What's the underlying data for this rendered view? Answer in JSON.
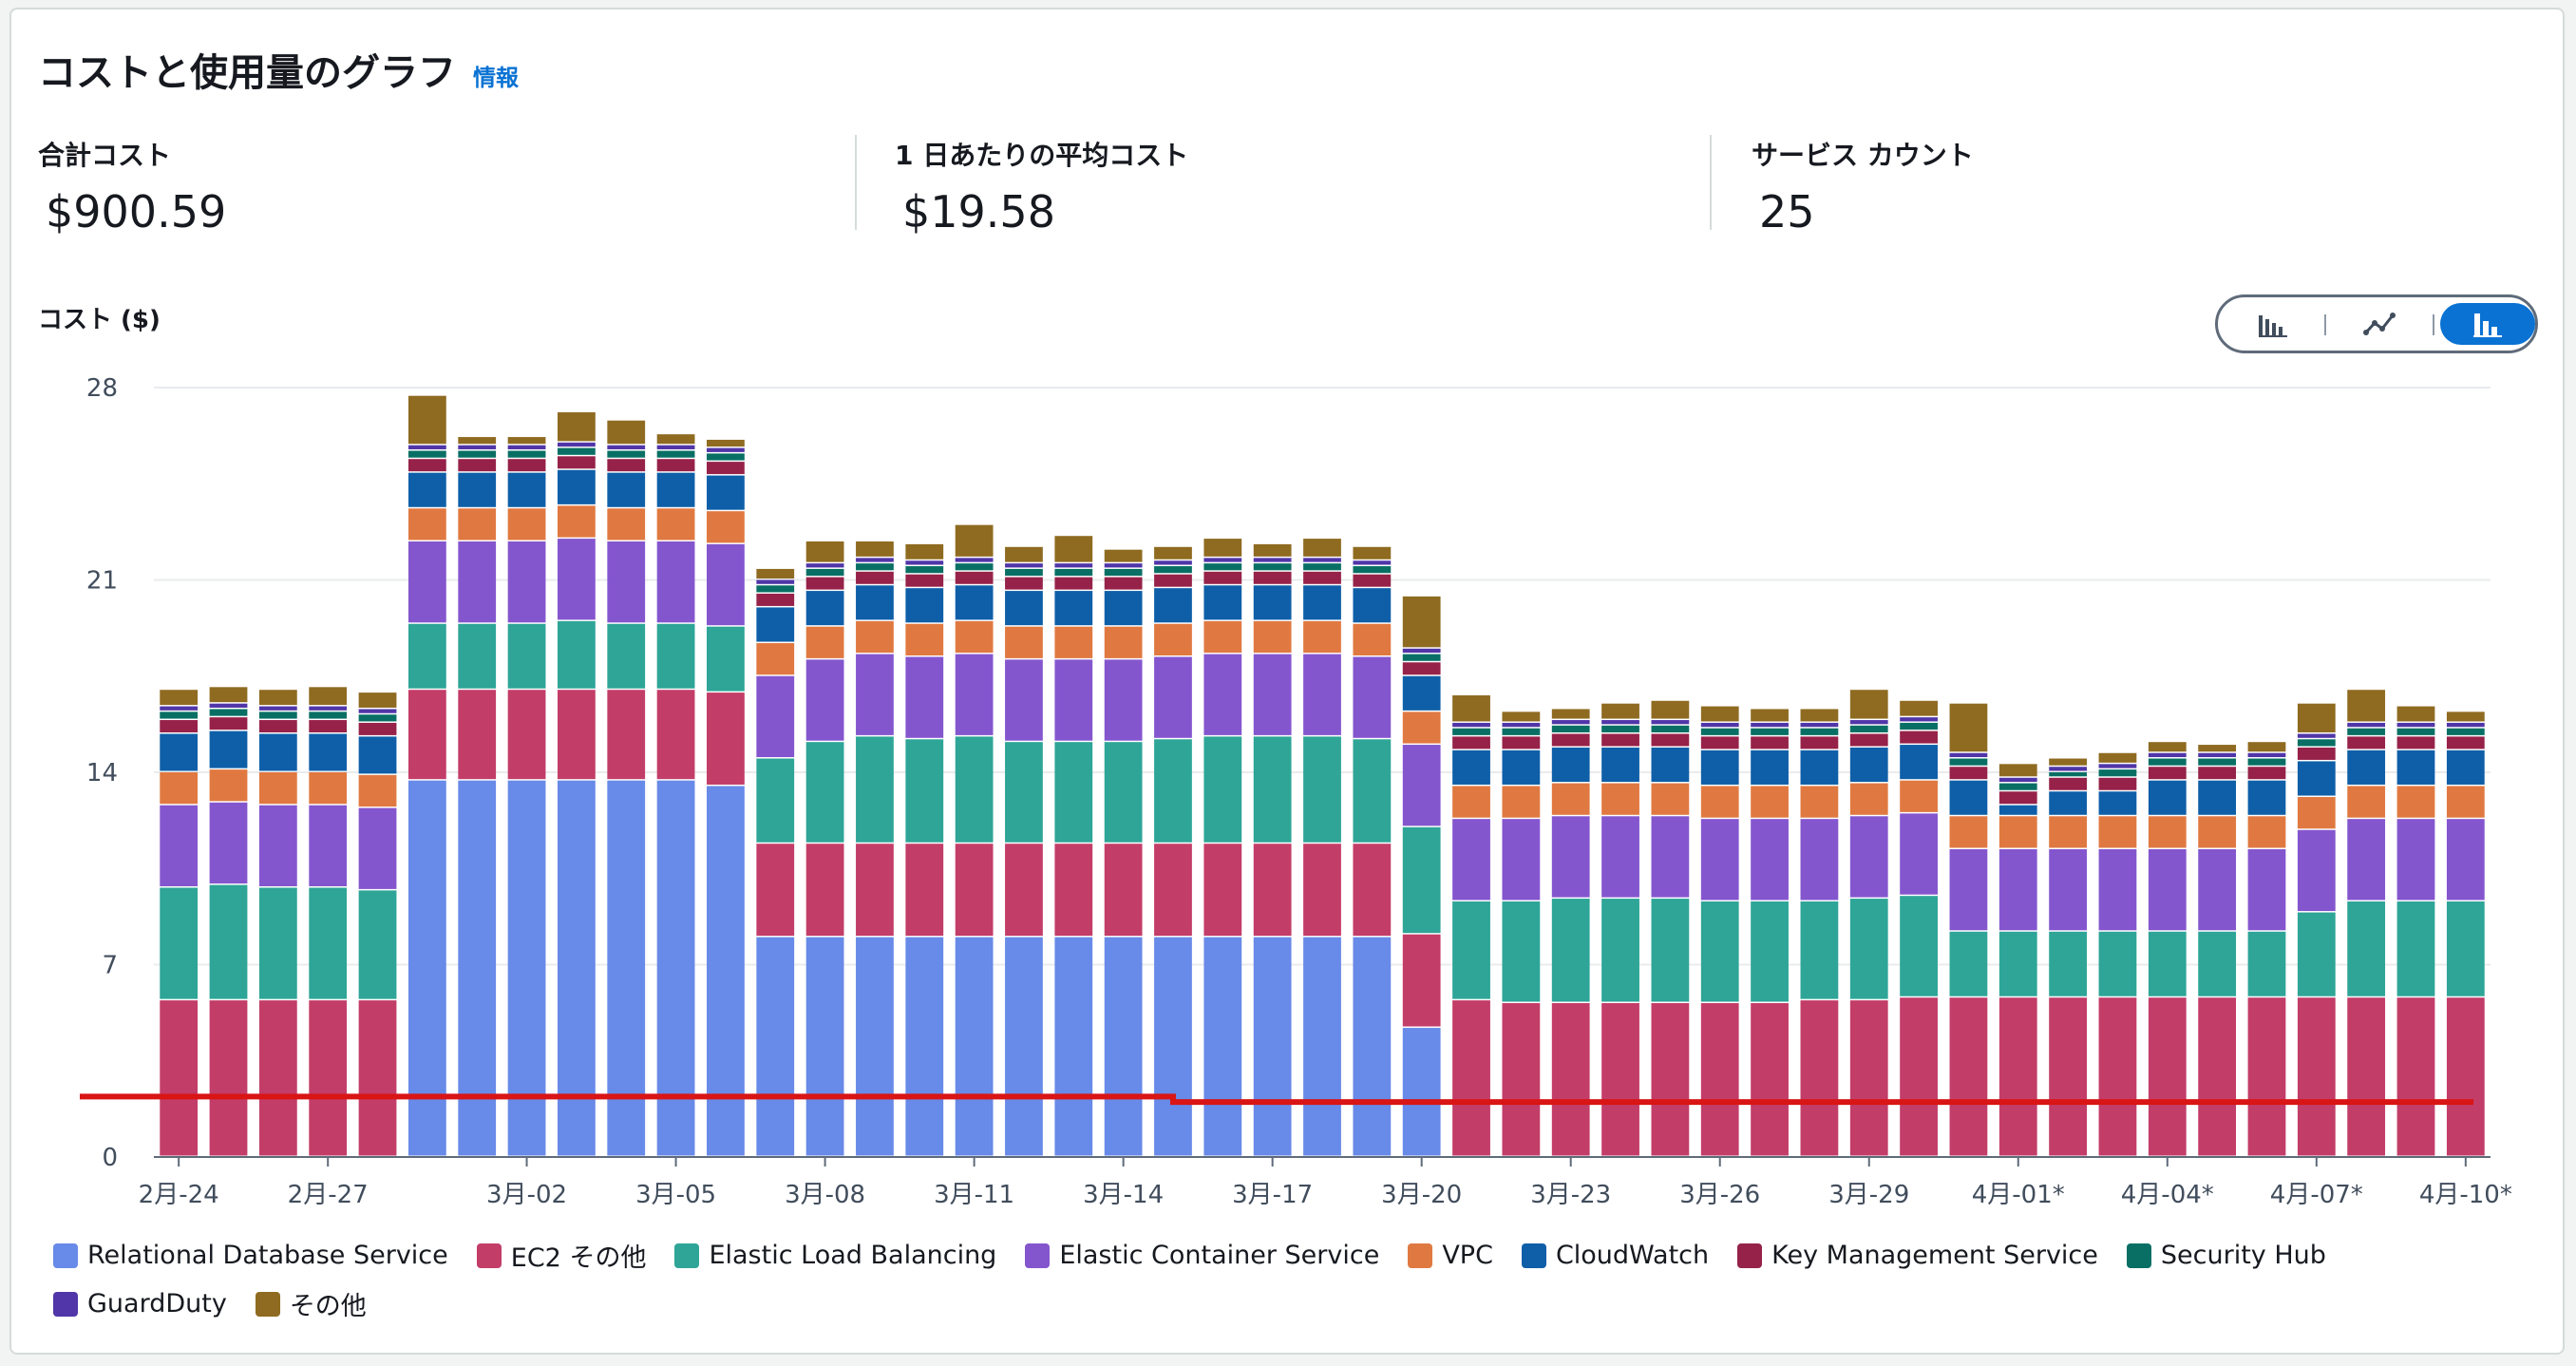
{
  "header": {
    "title": "コストと使用量のグラフ",
    "info_link": "情報"
  },
  "metrics": [
    {
      "label": "合計コスト",
      "value": "$900.59"
    },
    {
      "label": "1 日あたりの平均コスト",
      "value": "$19.58"
    },
    {
      "label": "サービス カウント",
      "value": "25"
    }
  ],
  "chart_toggle": {
    "options": [
      "bar-chart-icon",
      "line-chart-icon",
      "stacked-bar-chart-icon"
    ],
    "selected": "stacked-bar-chart-icon"
  },
  "chart_data": {
    "type": "bar",
    "stacked": true,
    "ylabel": "コスト ($)",
    "ylim": [
      0,
      28
    ],
    "yticks": [
      0,
      7,
      14,
      21,
      28
    ],
    "grid": true,
    "legend_position": "bottom",
    "categories": [
      "2月-24",
      "2月-25",
      "2月-26",
      "2月-27",
      "2月-28",
      "2月-29",
      "3月-01",
      "3月-02",
      "3月-03",
      "3月-04",
      "3月-05",
      "3月-06",
      "3月-07",
      "3月-08",
      "3月-09",
      "3月-10",
      "3月-11",
      "3月-12",
      "3月-13",
      "3月-14",
      "3月-15",
      "3月-16",
      "3月-17",
      "3月-18",
      "3月-19",
      "3月-20",
      "3月-21",
      "3月-22",
      "3月-23",
      "3月-24",
      "3月-25",
      "3月-26",
      "3月-27",
      "3月-28",
      "3月-29",
      "3月-30",
      "3月-31",
      "4月-01*",
      "4月-02*",
      "4月-03*",
      "4月-04*",
      "4月-05*",
      "4月-06*",
      "4月-07*",
      "4月-08*",
      "4月-09*",
      "4月-10*"
    ],
    "xtick_labels": [
      "2月-24",
      "2月-27",
      "3月-02",
      "3月-05",
      "3月-08",
      "3月-11",
      "3月-14",
      "3月-17",
      "3月-20",
      "3月-23",
      "3月-26",
      "3月-29",
      "4月-01*",
      "4月-04*",
      "4月-07*",
      "4月-10*"
    ],
    "series": [
      {
        "name": "Relational Database Service",
        "color": "#688ae8",
        "values": [
          0,
          0,
          0,
          0,
          0,
          13.7,
          13.7,
          13.7,
          13.7,
          13.7,
          13.7,
          13.5,
          8.0,
          8.0,
          8.0,
          8.0,
          8.0,
          8.0,
          8.0,
          8.0,
          8.0,
          8.0,
          8.0,
          8.0,
          8.0,
          4.7,
          0,
          0,
          0,
          0,
          0,
          0,
          0,
          0,
          0,
          0,
          0,
          0,
          0,
          0,
          0,
          0,
          0,
          0,
          0,
          0,
          0
        ]
      },
      {
        "name": "EC2 その他",
        "color": "#c33d69",
        "values": [
          5.7,
          5.7,
          5.7,
          5.7,
          5.7,
          3.3,
          3.3,
          3.3,
          3.3,
          3.3,
          3.3,
          3.4,
          3.4,
          3.4,
          3.4,
          3.4,
          3.4,
          3.4,
          3.4,
          3.4,
          3.4,
          3.4,
          3.4,
          3.4,
          3.4,
          3.4,
          5.7,
          5.6,
          5.6,
          5.6,
          5.6,
          5.6,
          5.6,
          5.7,
          5.7,
          5.8,
          5.8,
          5.8,
          5.8,
          5.8,
          5.8,
          5.8,
          5.8,
          5.8,
          5.8,
          5.8,
          5.8
        ]
      },
      {
        "name": "Elastic Load Balancing",
        "color": "#2ea597",
        "values": [
          4.1,
          4.2,
          4.1,
          4.1,
          4.0,
          2.4,
          2.4,
          2.4,
          2.5,
          2.4,
          2.4,
          2.4,
          3.1,
          3.7,
          3.9,
          3.8,
          3.9,
          3.7,
          3.7,
          3.7,
          3.8,
          3.9,
          3.9,
          3.9,
          3.8,
          3.9,
          3.6,
          3.7,
          3.8,
          3.8,
          3.8,
          3.7,
          3.7,
          3.6,
          3.7,
          3.7,
          2.4,
          2.4,
          2.4,
          2.4,
          2.4,
          2.4,
          2.4,
          3.1,
          3.5,
          3.5,
          3.5
        ]
      },
      {
        "name": "Elastic Container Service",
        "color": "#8456ce",
        "values": [
          3.0,
          3.0,
          3.0,
          3.0,
          3.0,
          3.0,
          3.0,
          3.0,
          3.0,
          3.0,
          3.0,
          3.0,
          3.0,
          3.0,
          3.0,
          3.0,
          3.0,
          3.0,
          3.0,
          3.0,
          3.0,
          3.0,
          3.0,
          3.0,
          3.0,
          3.0,
          3.0,
          3.0,
          3.0,
          3.0,
          3.0,
          3.0,
          3.0,
          3.0,
          3.0,
          3.0,
          3.0,
          3.0,
          3.0,
          3.0,
          3.0,
          3.0,
          3.0,
          3.0,
          3.0,
          3.0,
          3.0
        ]
      },
      {
        "name": "VPC",
        "color": "#e07941",
        "values": [
          1.2,
          1.2,
          1.2,
          1.2,
          1.2,
          1.2,
          1.2,
          1.2,
          1.2,
          1.2,
          1.2,
          1.2,
          1.2,
          1.2,
          1.2,
          1.2,
          1.2,
          1.2,
          1.2,
          1.2,
          1.2,
          1.2,
          1.2,
          1.2,
          1.2,
          1.2,
          1.2,
          1.2,
          1.2,
          1.2,
          1.2,
          1.2,
          1.2,
          1.2,
          1.2,
          1.2,
          1.2,
          1.2,
          1.2,
          1.2,
          1.2,
          1.2,
          1.2,
          1.2,
          1.2,
          1.2,
          1.2
        ]
      },
      {
        "name": "CloudWatch",
        "color": "#0f5fa8",
        "values": [
          1.4,
          1.4,
          1.4,
          1.4,
          1.4,
          1.3,
          1.3,
          1.3,
          1.3,
          1.3,
          1.3,
          1.3,
          1.3,
          1.3,
          1.3,
          1.3,
          1.3,
          1.3,
          1.3,
          1.3,
          1.3,
          1.3,
          1.3,
          1.3,
          1.3,
          1.3,
          1.3,
          1.3,
          1.3,
          1.3,
          1.3,
          1.3,
          1.3,
          1.3,
          1.3,
          1.3,
          1.3,
          0.4,
          0.9,
          0.9,
          1.3,
          1.3,
          1.3,
          1.3,
          1.3,
          1.3,
          1.3
        ]
      },
      {
        "name": "Key Management Service",
        "color": "#962249",
        "values": [
          0.5,
          0.5,
          0.5,
          0.5,
          0.5,
          0.5,
          0.5,
          0.5,
          0.5,
          0.5,
          0.5,
          0.5,
          0.5,
          0.5,
          0.5,
          0.5,
          0.5,
          0.5,
          0.5,
          0.5,
          0.5,
          0.5,
          0.5,
          0.5,
          0.5,
          0.5,
          0.5,
          0.5,
          0.5,
          0.5,
          0.5,
          0.5,
          0.5,
          0.5,
          0.5,
          0.5,
          0.5,
          0.5,
          0.5,
          0.5,
          0.5,
          0.5,
          0.5,
          0.5,
          0.5,
          0.5,
          0.5
        ]
      },
      {
        "name": "Security Hub",
        "color": "#096f64",
        "values": [
          0.3,
          0.3,
          0.3,
          0.3,
          0.3,
          0.3,
          0.3,
          0.3,
          0.3,
          0.3,
          0.3,
          0.3,
          0.3,
          0.3,
          0.3,
          0.3,
          0.3,
          0.3,
          0.3,
          0.3,
          0.3,
          0.3,
          0.3,
          0.3,
          0.3,
          0.3,
          0.3,
          0.3,
          0.3,
          0.3,
          0.3,
          0.3,
          0.3,
          0.3,
          0.3,
          0.3,
          0.3,
          0.3,
          0.2,
          0.3,
          0.3,
          0.3,
          0.3,
          0.3,
          0.3,
          0.3,
          0.3
        ]
      },
      {
        "name": "GuardDuty",
        "color": "#5036a8",
        "values": [
          0.2,
          0.2,
          0.2,
          0.2,
          0.2,
          0.2,
          0.2,
          0.2,
          0.2,
          0.2,
          0.2,
          0.2,
          0.2,
          0.2,
          0.2,
          0.2,
          0.2,
          0.2,
          0.2,
          0.2,
          0.2,
          0.2,
          0.2,
          0.2,
          0.2,
          0.2,
          0.2,
          0.2,
          0.2,
          0.2,
          0.2,
          0.2,
          0.2,
          0.2,
          0.2,
          0.2,
          0.2,
          0.2,
          0.2,
          0.2,
          0.2,
          0.2,
          0.2,
          0.2,
          0.2,
          0.2,
          0.2
        ]
      },
      {
        "name": "その他",
        "color": "#8f6b21",
        "values": [
          0.6,
          0.6,
          0.6,
          0.7,
          0.6,
          1.8,
          0.3,
          0.3,
          1.1,
          0.9,
          0.4,
          0.3,
          0.4,
          0.8,
          0.6,
          0.6,
          1.2,
          0.6,
          1.0,
          0.5,
          0.5,
          0.7,
          0.5,
          0.7,
          0.5,
          1.9,
          1.0,
          0.4,
          0.4,
          0.6,
          0.7,
          0.6,
          0.5,
          0.5,
          1.1,
          0.6,
          1.8,
          0.5,
          0.3,
          0.4,
          0.4,
          0.3,
          0.4,
          1.1,
          1.2,
          0.6,
          0.4
        ]
      }
    ],
    "reference_line": {
      "color": "#d91515",
      "values": [
        2.2,
        2.0
      ]
    }
  }
}
